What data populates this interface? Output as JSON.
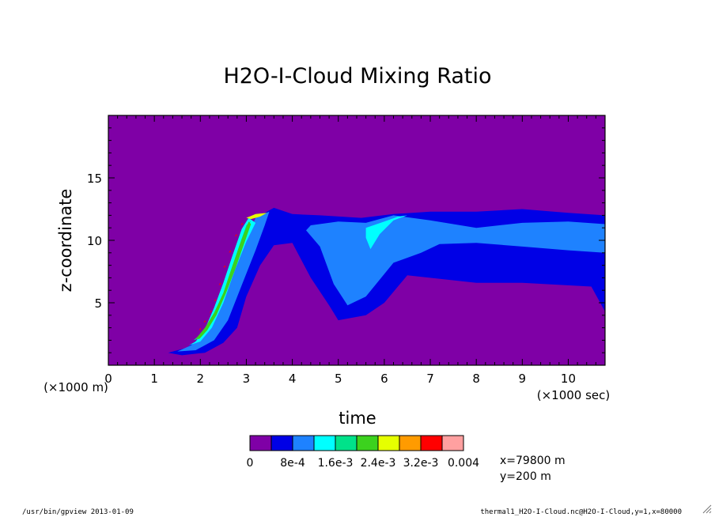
{
  "chart_data": {
    "type": "heatmap",
    "title": "H2O-I-Cloud Mixing Ratio",
    "xlabel": "time",
    "ylabel": "z-coordinate",
    "x_unit_label": "(×1000 sec)",
    "y_unit_label": "(×1000 m)",
    "xlim": [
      0,
      10.8
    ],
    "ylim": [
      0,
      20
    ],
    "x_ticks": [
      0,
      1,
      2,
      3,
      4,
      5,
      6,
      7,
      8,
      9,
      10
    ],
    "y_ticks": [
      5,
      10,
      15
    ],
    "colorbar": {
      "colors": [
        "#7f00a6",
        "#0000e6",
        "#1e82ff",
        "#00ffff",
        "#00e28a",
        "#3cd21e",
        "#e6ff00",
        "#ff9b00",
        "#ff0000",
        "#ffa0a0"
      ],
      "labels": [
        "0",
        "8e-4",
        "1.6e-3",
        "2.4e-3",
        "3.2e-3",
        "0.004"
      ]
    },
    "regions": [
      {
        "level": 1,
        "name": "outer-envelope",
        "points": [
          [
            1.3,
            1.0
          ],
          [
            1.7,
            1.4
          ],
          [
            2.0,
            2.2
          ],
          [
            2.3,
            3.5
          ],
          [
            2.6,
            6.0
          ],
          [
            2.9,
            9.5
          ],
          [
            3.3,
            12.0
          ],
          [
            3.6,
            12.6
          ],
          [
            4.0,
            12.1
          ],
          [
            4.6,
            12.0
          ],
          [
            5.5,
            11.8
          ],
          [
            6.2,
            12.1
          ],
          [
            7.0,
            12.3
          ],
          [
            8.0,
            12.3
          ],
          [
            9.0,
            12.5
          ],
          [
            10.0,
            12.2
          ],
          [
            10.8,
            12.0
          ],
          [
            10.8,
            4.3
          ],
          [
            10.5,
            6.3
          ],
          [
            9.0,
            6.6
          ],
          [
            8.0,
            6.6
          ],
          [
            6.5,
            7.2
          ],
          [
            6.0,
            5.0
          ],
          [
            5.6,
            4.0
          ],
          [
            5.0,
            3.6
          ],
          [
            4.8,
            4.8
          ],
          [
            4.4,
            7.0
          ],
          [
            4.0,
            9.8
          ],
          [
            3.6,
            9.6
          ],
          [
            3.3,
            8.0
          ],
          [
            3.0,
            5.5
          ],
          [
            2.8,
            3.0
          ],
          [
            2.5,
            1.8
          ],
          [
            2.1,
            1.0
          ],
          [
            1.6,
            0.8
          ]
        ]
      },
      {
        "level": 2,
        "name": "mid-band",
        "points": [
          [
            4.4,
            11.2
          ],
          [
            5.0,
            11.5
          ],
          [
            5.6,
            11.4
          ],
          [
            6.2,
            12.0
          ],
          [
            7.0,
            11.6
          ],
          [
            8.0,
            11.0
          ],
          [
            9.0,
            11.4
          ],
          [
            10.0,
            11.5
          ],
          [
            10.8,
            11.3
          ],
          [
            10.8,
            9.0
          ],
          [
            10.0,
            9.2
          ],
          [
            9.0,
            9.5
          ],
          [
            8.0,
            9.8
          ],
          [
            7.2,
            9.7
          ],
          [
            6.8,
            9.0
          ],
          [
            6.2,
            8.2
          ],
          [
            5.6,
            5.5
          ],
          [
            5.2,
            4.8
          ],
          [
            4.9,
            6.5
          ],
          [
            4.6,
            9.5
          ],
          [
            4.3,
            10.8
          ]
        ]
      },
      {
        "level": 2,
        "name": "ascent-band",
        "points": [
          [
            1.5,
            1.1
          ],
          [
            1.8,
            1.6
          ],
          [
            2.1,
            2.6
          ],
          [
            2.4,
            4.5
          ],
          [
            2.7,
            7.5
          ],
          [
            3.0,
            10.0
          ],
          [
            3.2,
            11.8
          ],
          [
            3.5,
            12.3
          ],
          [
            3.4,
            11.2
          ],
          [
            3.2,
            9.2
          ],
          [
            2.9,
            6.4
          ],
          [
            2.6,
            3.6
          ],
          [
            2.3,
            2.0
          ],
          [
            1.9,
            1.2
          ]
        ]
      },
      {
        "level": 3,
        "name": "core",
        "points": [
          [
            1.75,
            1.6
          ],
          [
            1.9,
            1.9
          ],
          [
            2.1,
            2.9
          ],
          [
            2.3,
            4.6
          ],
          [
            2.5,
            6.6
          ],
          [
            2.7,
            8.8
          ],
          [
            2.9,
            10.9
          ],
          [
            3.05,
            11.8
          ],
          [
            3.2,
            11.4
          ],
          [
            3.0,
            9.9
          ],
          [
            2.75,
            7.6
          ],
          [
            2.5,
            5.0
          ],
          [
            2.25,
            3.0
          ],
          [
            2.0,
            1.9
          ]
        ]
      },
      {
        "level": 3,
        "name": "plume-peak",
        "points": [
          [
            5.6,
            11.0
          ],
          [
            6.0,
            11.5
          ],
          [
            6.3,
            11.9
          ],
          [
            6.5,
            12.0
          ],
          [
            6.2,
            11.6
          ],
          [
            5.9,
            10.5
          ],
          [
            5.7,
            9.3
          ],
          [
            5.6,
            10.2
          ]
        ]
      },
      {
        "level": 4,
        "name": "core-inner",
        "points": [
          [
            1.85,
            2.0
          ],
          [
            2.05,
            2.6
          ],
          [
            2.25,
            3.6
          ],
          [
            2.45,
            5.2
          ],
          [
            2.65,
            7.4
          ],
          [
            2.85,
            9.6
          ],
          [
            3.0,
            11.2
          ],
          [
            3.1,
            11.6
          ],
          [
            3.0,
            10.7
          ],
          [
            2.8,
            8.6
          ],
          [
            2.55,
            6.2
          ],
          [
            2.35,
            4.2
          ],
          [
            2.15,
            2.8
          ],
          [
            1.95,
            2.1
          ]
        ]
      },
      {
        "level": 5,
        "name": "core-bright",
        "points": [
          [
            1.9,
            2.1
          ],
          [
            2.1,
            3.0
          ],
          [
            2.3,
            4.2
          ],
          [
            2.5,
            5.8
          ],
          [
            2.7,
            8.0
          ],
          [
            2.9,
            10.1
          ],
          [
            3.05,
            11.5
          ],
          [
            3.1,
            11.3
          ],
          [
            2.95,
            9.7
          ],
          [
            2.75,
            7.6
          ],
          [
            2.55,
            5.7
          ],
          [
            2.35,
            4.0
          ],
          [
            2.15,
            2.8
          ],
          [
            1.98,
            2.1
          ]
        ]
      },
      {
        "level": 6,
        "name": "top-cap",
        "points": [
          [
            3.0,
            11.8
          ],
          [
            3.2,
            12.1
          ],
          [
            3.45,
            12.2
          ],
          [
            3.3,
            11.9
          ],
          [
            3.1,
            11.7
          ]
        ]
      },
      {
        "level": 8,
        "name": "hotspot",
        "points": [
          [
            1.97,
            2.8
          ],
          [
            2.02,
            2.9
          ],
          [
            2.0,
            3.0
          ]
        ]
      },
      {
        "level": 8,
        "name": "hotspot",
        "points": [
          [
            2.07,
            3.4
          ],
          [
            2.12,
            3.5
          ],
          [
            2.1,
            3.6
          ]
        ]
      },
      {
        "level": 8,
        "name": "hotspot",
        "points": [
          [
            2.2,
            4.2
          ],
          [
            2.25,
            4.3
          ],
          [
            2.23,
            4.4
          ]
        ]
      },
      {
        "level": 8,
        "name": "hotspot",
        "points": [
          [
            2.3,
            5.1
          ],
          [
            2.35,
            5.2
          ],
          [
            2.33,
            5.3
          ]
        ]
      },
      {
        "level": 8,
        "name": "hotspot",
        "points": [
          [
            2.4,
            6.4
          ],
          [
            2.45,
            6.5
          ],
          [
            2.43,
            6.6
          ]
        ]
      },
      {
        "level": 8,
        "name": "hotspot",
        "points": [
          [
            2.5,
            7.8
          ],
          [
            2.55,
            7.9
          ],
          [
            2.53,
            8.0
          ]
        ]
      },
      {
        "level": 8,
        "name": "hotspot",
        "points": [
          [
            2.62,
            9.0
          ],
          [
            2.67,
            9.1
          ],
          [
            2.65,
            9.2
          ]
        ]
      },
      {
        "level": 8,
        "name": "hotspot",
        "points": [
          [
            2.75,
            10.3
          ],
          [
            2.8,
            10.4
          ],
          [
            2.78,
            10.5
          ]
        ]
      },
      {
        "level": 8,
        "name": "hotspot",
        "points": [
          [
            2.88,
            11.2
          ],
          [
            2.93,
            11.3
          ],
          [
            2.91,
            11.4
          ]
        ]
      }
    ]
  },
  "info": {
    "x_coord": "x=79800 m",
    "y_coord": "y=200 m"
  },
  "footer": {
    "left": "/usr/bin/gpview  2013-01-09",
    "right": "thermal1_H2O-I-Cloud.nc@H2O-I-Cloud,y=1,x=80000"
  }
}
